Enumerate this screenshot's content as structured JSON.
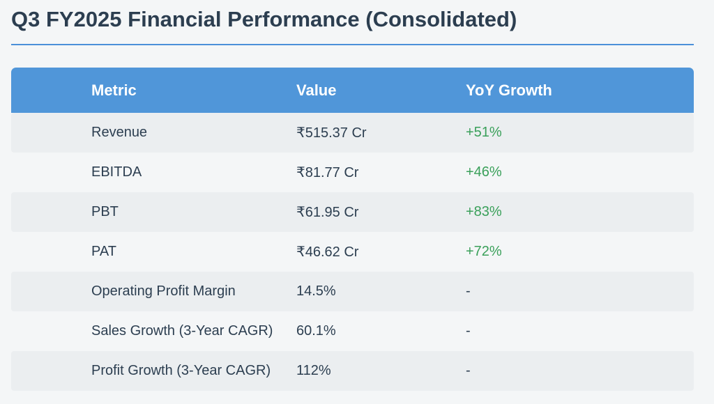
{
  "title": "Q3 FY2025 Financial Performance (Consolidated)",
  "colors": {
    "header_bg": "#5096d9",
    "positive_growth": "#3aa05a",
    "title_rule": "#4a90d9"
  },
  "table": {
    "columns": [
      "Metric",
      "Value",
      "YoY Growth"
    ],
    "rows": [
      {
        "metric": "Revenue",
        "value": "₹515.37 Cr",
        "growth": "+51%"
      },
      {
        "metric": "EBITDA",
        "value": "₹81.77 Cr",
        "growth": "+46%"
      },
      {
        "metric": "PBT",
        "value": "₹61.95 Cr",
        "growth": "+83%"
      },
      {
        "metric": "PAT",
        "value": "₹46.62 Cr",
        "growth": "+72%"
      },
      {
        "metric": "Operating Profit Margin",
        "value": "14.5%",
        "growth": "-"
      },
      {
        "metric": "Sales Growth (3-Year CAGR)",
        "value": "60.1%",
        "growth": "-"
      },
      {
        "metric": "Profit Growth (3-Year CAGR)",
        "value": "112%",
        "growth": "-"
      }
    ]
  }
}
